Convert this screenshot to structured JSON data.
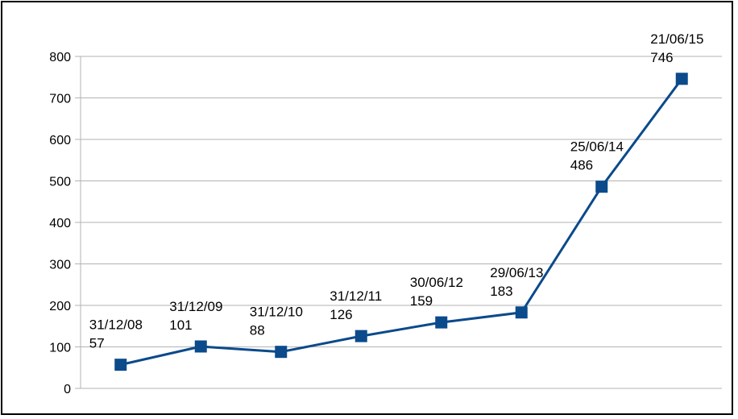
{
  "chart_data": {
    "type": "line",
    "title": "",
    "xlabel": "",
    "ylabel": "",
    "ylim": [
      0,
      800
    ],
    "yticks": [
      0,
      100,
      200,
      300,
      400,
      500,
      600,
      700,
      800
    ],
    "grid": true,
    "legend": "none",
    "series": [
      {
        "points": [
          {
            "label": "31/12/08",
            "value": 57
          },
          {
            "label": "31/12/09",
            "value": 101
          },
          {
            "label": "31/12/10",
            "value": 88
          },
          {
            "label": "31/12/11",
            "value": 126
          },
          {
            "label": "30/06/12",
            "value": 159
          },
          {
            "label": "29/06/13",
            "value": 183
          },
          {
            "label": "25/06/14",
            "value": 486
          },
          {
            "label": "21/06/15",
            "value": 746
          }
        ],
        "color": "#0b4a8b",
        "marker": "square"
      }
    ],
    "colors": {
      "grid": "#b3b3b3",
      "axis": "#b3b3b3",
      "line": "#0b4a8b",
      "marker": "#0b4a8b"
    }
  }
}
